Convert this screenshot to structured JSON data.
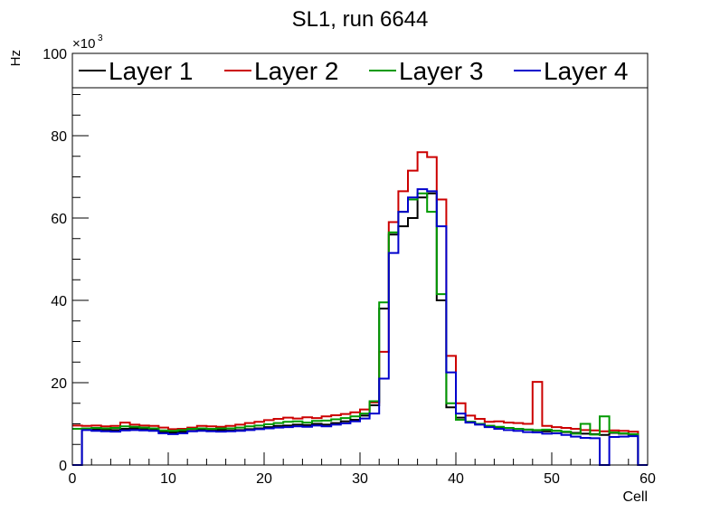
{
  "chart_data": {
    "type": "line",
    "title": "SL1, run 6644",
    "xlabel": "Cell",
    "ylabel": "Hz",
    "multiplier": "×10",
    "multiplier_exp": "3",
    "xlim": [
      0,
      60
    ],
    "ylim": [
      0,
      100
    ],
    "x_ticks": [
      0,
      10,
      20,
      30,
      40,
      50,
      60
    ],
    "y_ticks": [
      0,
      20,
      40,
      60,
      80,
      100
    ],
    "legend_position": "top",
    "series": [
      {
        "name": "Layer 1",
        "color": "#000000",
        "values": [
          0,
          8.8,
          8.7,
          8.6,
          8.5,
          8.8,
          8.9,
          8.8,
          8.7,
          8.0,
          7.9,
          8.1,
          8.3,
          8.6,
          8.6,
          8.5,
          8.4,
          8.5,
          8.7,
          8.9,
          9.2,
          9.5,
          9.6,
          9.8,
          9.7,
          10.0,
          9.8,
          10.2,
          10.6,
          11.0,
          12.0,
          14.5,
          38.0,
          56.0,
          58.0,
          60.0,
          65.0,
          66.0,
          40.0,
          14.0,
          11.5,
          10.5,
          10.0,
          9.5,
          9.2,
          9.0,
          8.8,
          8.6,
          8.4,
          8.2,
          8.3,
          8.0,
          7.8,
          7.6,
          7.5,
          7.3,
          7.8,
          7.6,
          7.4,
          0
        ]
      },
      {
        "name": "Layer 2",
        "color": "#cc0000",
        "values": [
          9.6,
          9.5,
          9.6,
          9.4,
          9.5,
          10.3,
          9.8,
          9.6,
          9.5,
          9.1,
          8.7,
          8.8,
          9.1,
          9.5,
          9.4,
          9.3,
          9.5,
          9.8,
          10.2,
          10.5,
          10.9,
          11.2,
          11.5,
          11.3,
          11.6,
          11.4,
          11.8,
          12.1,
          12.4,
          12.8,
          13.5,
          15.2,
          27.5,
          59.0,
          66.5,
          71.5,
          76.0,
          74.8,
          64.5,
          26.5,
          15.0,
          12.0,
          11.2,
          10.5,
          10.6,
          10.3,
          10.2,
          10.0,
          20.2,
          9.5,
          9.2,
          9.0,
          8.8,
          8.5,
          8.4,
          8.2,
          8.4,
          8.3,
          8.1,
          0
        ]
      },
      {
        "name": "Layer 3",
        "color": "#009900",
        "values": [
          8.8,
          8.9,
          9.0,
          8.9,
          9.0,
          9.4,
          9.3,
          9.1,
          8.9,
          8.4,
          8.3,
          8.5,
          8.8,
          8.9,
          8.8,
          8.9,
          8.9,
          9.1,
          9.4,
          9.6,
          9.9,
          10.2,
          10.5,
          10.6,
          10.3,
          10.7,
          10.8,
          11.1,
          11.4,
          11.8,
          12.5,
          15.5,
          39.5,
          56.5,
          61.5,
          64.5,
          66.0,
          61.5,
          41.5,
          15.0,
          11.0,
          10.5,
          10.0,
          9.5,
          9.3,
          9.0,
          8.8,
          8.6,
          8.5,
          8.6,
          8.3,
          8.1,
          7.6,
          10.0,
          7.4,
          11.8,
          7.9,
          7.7,
          7.5,
          0
        ]
      },
      {
        "name": "Layer 4",
        "color": "#0000cc",
        "values": [
          0,
          8.5,
          8.3,
          8.2,
          8.1,
          8.4,
          8.5,
          8.4,
          8.3,
          7.7,
          7.5,
          7.7,
          8.2,
          8.3,
          8.2,
          8.1,
          8.2,
          8.3,
          8.5,
          8.7,
          8.9,
          9.1,
          9.2,
          9.4,
          9.3,
          9.6,
          9.4,
          9.8,
          10.1,
          10.6,
          11.3,
          12.5,
          21.0,
          51.5,
          61.5,
          65.0,
          67.0,
          66.5,
          58.0,
          22.5,
          12.5,
          10.3,
          9.8,
          9.2,
          8.8,
          8.5,
          8.3,
          8.0,
          7.9,
          7.6,
          7.7,
          7.3,
          6.9,
          6.6,
          6.5,
          0,
          6.8,
          6.9,
          7.0,
          0
        ]
      }
    ]
  }
}
